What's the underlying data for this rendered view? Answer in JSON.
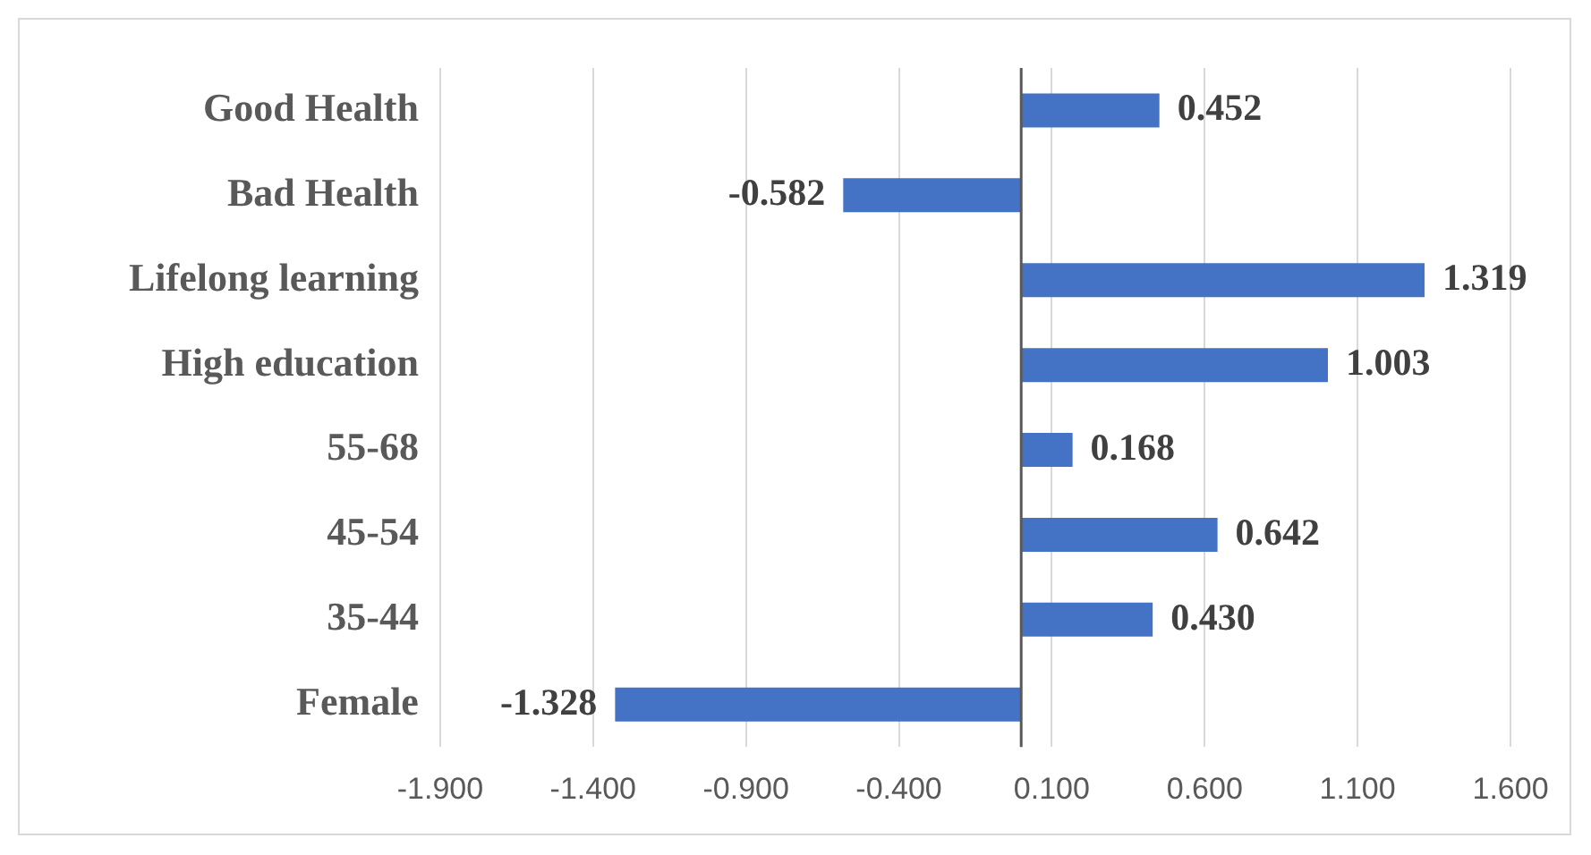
{
  "chart_data": {
    "type": "bar",
    "orientation": "horizontal",
    "categories": [
      "Good Health",
      "Bad Health",
      "Lifelong learning",
      "High education",
      "55-68",
      "45-54",
      "35-44",
      "Female"
    ],
    "values": [
      0.452,
      -0.582,
      1.319,
      1.003,
      0.168,
      0.642,
      0.43,
      -1.328
    ],
    "value_labels": [
      "0.452",
      "-0.582",
      "1.319",
      "1.003",
      "0.168",
      "0.642",
      "0.430",
      "-1.328"
    ],
    "color": "#4472c4",
    "xlim": [
      -1.9,
      1.6
    ],
    "xticks": [
      {
        "value": -1.9,
        "label": "-1.900"
      },
      {
        "value": -1.4,
        "label": "-1.400"
      },
      {
        "value": -0.9,
        "label": "-0.900"
      },
      {
        "value": -0.4,
        "label": "-0.400"
      },
      {
        "value": 0.1,
        "label": "0.100"
      },
      {
        "value": 0.6,
        "label": "0.600"
      },
      {
        "value": 1.1,
        "label": "1.100"
      },
      {
        "value": 1.6,
        "label": "1.600"
      }
    ],
    "grid": "x",
    "legend": false
  }
}
